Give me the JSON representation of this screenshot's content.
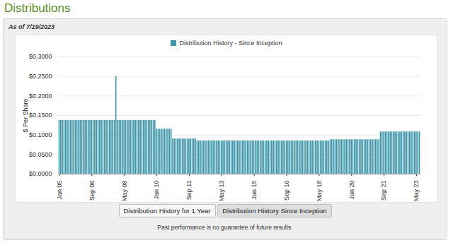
{
  "chart_data": {
    "type": "bar",
    "title": "Distributions",
    "subtitle": "As of 7/19/2023",
    "y_label": "$ Per Share",
    "buttons": [
      "Distribution History for 1 Year",
      "Distribution History Since Inception"
    ],
    "caption": "Past performance is no guarantee of future results.",
    "legend": "top",
    "grid": true,
    "categories": [
      "Jan 05",
      null,
      null,
      null,
      null,
      null,
      null,
      null,
      null,
      null,
      null,
      null,
      null,
      null,
      null,
      null,
      null,
      null,
      null,
      null,
      "Sep 06",
      null,
      null,
      null,
      null,
      null,
      null,
      null,
      null,
      null,
      null,
      null,
      null,
      null,
      null,
      null,
      null,
      null,
      null,
      null,
      "May 08",
      null,
      null,
      null,
      null,
      null,
      null,
      null,
      null,
      null,
      null,
      null,
      null,
      null,
      null,
      null,
      null,
      null,
      null,
      null,
      "Jan 10",
      null,
      null,
      null,
      null,
      null,
      null,
      null,
      null,
      null,
      null,
      null,
      null,
      null,
      null,
      null,
      null,
      null,
      null,
      null,
      "Sep 11",
      null,
      null,
      null,
      null,
      null,
      null,
      null,
      null,
      null,
      null,
      null,
      null,
      null,
      null,
      null,
      null,
      null,
      null,
      null,
      "May 13",
      null,
      null,
      null,
      null,
      null,
      null,
      null,
      null,
      null,
      null,
      null,
      null,
      null,
      null,
      null,
      null,
      null,
      null,
      null,
      "Jan 15",
      null,
      null,
      null,
      null,
      null,
      null,
      null,
      null,
      null,
      null,
      null,
      null,
      null,
      null,
      null,
      null,
      null,
      null,
      null,
      "Sep 16",
      null,
      null,
      null,
      null,
      null,
      null,
      null,
      null,
      null,
      null,
      null,
      null,
      null,
      null,
      null,
      null,
      null,
      null,
      null,
      "May 18",
      null,
      null,
      null,
      null,
      null,
      null,
      null,
      null,
      null,
      null,
      null,
      null,
      null,
      null,
      null,
      null,
      null,
      null,
      null,
      "Jan 20",
      null,
      null,
      null,
      null,
      null,
      null,
      null,
      null,
      null,
      null,
      null,
      null,
      null,
      null,
      null,
      null,
      null,
      null,
      null,
      "Sep 21",
      null,
      null,
      null,
      null,
      null,
      null,
      null,
      null,
      null,
      null,
      null,
      null,
      null,
      null,
      null,
      null,
      null,
      null,
      null,
      "May 23",
      null,
      null
    ],
    "series": [
      {
        "name": "Distribution History - Since Inception",
        "color": "#3d96a8",
        "values": [
          0.1375,
          0.1375,
          0.1375,
          0.1375,
          0.1375,
          0.1375,
          0.1375,
          0.1375,
          0.1375,
          0.1375,
          0.1375,
          0.1375,
          0.1375,
          0.1375,
          0.1375,
          0.1375,
          0.1375,
          0.1375,
          0.1375,
          0.1375,
          0.1375,
          0.1375,
          0.1375,
          0.1375,
          0.1375,
          0.1375,
          0.1375,
          0.1375,
          0.1375,
          0.1375,
          0.1375,
          0.1375,
          0.1375,
          0.1375,
          0.1375,
          0.25,
          0.1375,
          0.1375,
          0.1375,
          0.1375,
          0.1375,
          0.1375,
          0.1375,
          0.1375,
          0.1375,
          0.1375,
          0.1375,
          0.1375,
          0.1375,
          0.1375,
          0.1375,
          0.1375,
          0.1375,
          0.1375,
          0.1375,
          0.1375,
          0.1375,
          0.1375,
          0.1375,
          0.1375,
          0.115,
          0.115,
          0.115,
          0.115,
          0.115,
          0.115,
          0.115,
          0.115,
          0.115,
          0.115,
          0.09,
          0.09,
          0.09,
          0.09,
          0.09,
          0.09,
          0.09,
          0.09,
          0.09,
          0.09,
          0.09,
          0.09,
          0.09,
          0.09,
          0.09,
          0.085,
          0.085,
          0.085,
          0.085,
          0.085,
          0.085,
          0.085,
          0.085,
          0.085,
          0.085,
          0.085,
          0.085,
          0.085,
          0.085,
          0.085,
          0.085,
          0.085,
          0.085,
          0.085,
          0.085,
          0.085,
          0.085,
          0.085,
          0.085,
          0.085,
          0.085,
          0.085,
          0.085,
          0.085,
          0.085,
          0.085,
          0.085,
          0.085,
          0.085,
          0.085,
          0.085,
          0.085,
          0.085,
          0.085,
          0.085,
          0.085,
          0.085,
          0.085,
          0.085,
          0.085,
          0.085,
          0.085,
          0.085,
          0.085,
          0.085,
          0.085,
          0.085,
          0.085,
          0.085,
          0.085,
          0.085,
          0.085,
          0.085,
          0.085,
          0.085,
          0.085,
          0.085,
          0.085,
          0.085,
          0.085,
          0.085,
          0.085,
          0.085,
          0.085,
          0.085,
          0.085,
          0.085,
          0.085,
          0.085,
          0.085,
          0.085,
          0.085,
          0.085,
          0.085,
          0.085,
          0.085,
          0.085,
          0.088,
          0.088,
          0.088,
          0.088,
          0.088,
          0.088,
          0.088,
          0.088,
          0.088,
          0.088,
          0.088,
          0.088,
          0.088,
          0.088,
          0.088,
          0.088,
          0.088,
          0.088,
          0.088,
          0.088,
          0.088,
          0.088,
          0.088,
          0.088,
          0.088,
          0.088,
          0.088,
          0.088,
          0.088,
          0.088,
          0.088,
          0.108,
          0.108,
          0.108,
          0.108,
          0.108,
          0.108,
          0.108,
          0.108,
          0.108,
          0.108,
          0.108,
          0.108,
          0.108,
          0.108,
          0.108,
          0.108,
          0.108,
          0.108,
          0.108,
          0.108,
          0.108,
          0.108,
          0.108,
          0.108,
          0.108
        ]
      }
    ],
    "ylim": [
      0,
      0.3
    ],
    "yticks": [
      {
        "value": 0,
        "label": "$0.0000"
      },
      {
        "value": 0.05,
        "label": "$0.0500"
      },
      {
        "value": 0.1,
        "label": "$0.1000"
      },
      {
        "value": 0.15,
        "label": "$0.1500"
      },
      {
        "value": 0.2,
        "label": "$0.2000"
      },
      {
        "value": 0.25,
        "label": "$0.2500"
      },
      {
        "value": 0.3,
        "label": "$0.3000"
      }
    ]
  }
}
